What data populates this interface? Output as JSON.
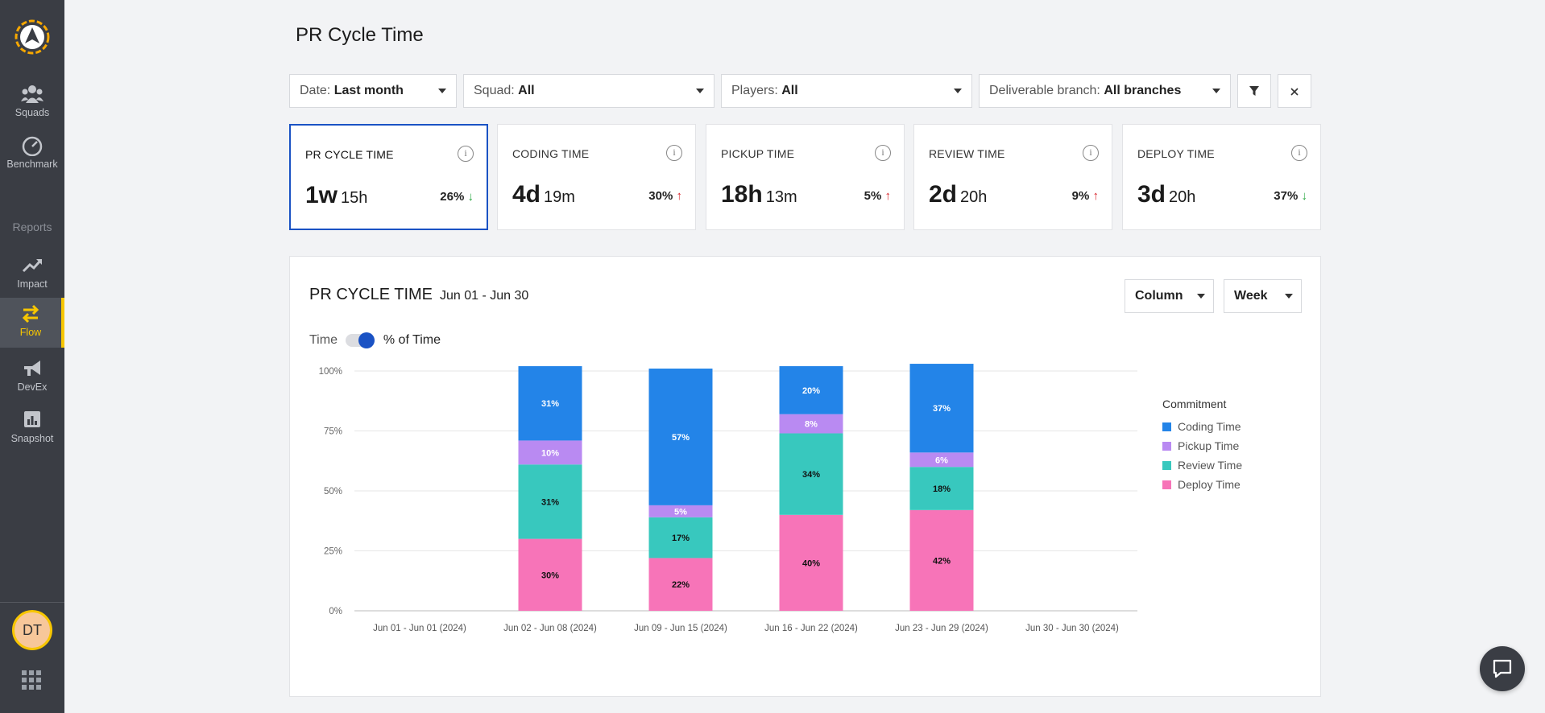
{
  "sidebar": {
    "items": [
      {
        "label": "Squads",
        "icon": "people-icon"
      },
      {
        "label": "Benchmark",
        "icon": "gauge-icon"
      },
      {
        "label": "Impact",
        "icon": "trend-up-icon"
      },
      {
        "label": "Flow",
        "icon": "swap-arrows-icon"
      },
      {
        "label": "DevEx",
        "icon": "megaphone-icon"
      },
      {
        "label": "Snapshot",
        "icon": "bar-chart-icon"
      }
    ],
    "section_label": "Reports",
    "avatar_initials": "DT"
  },
  "page": {
    "title": "PR Cycle Time"
  },
  "filters": {
    "date": {
      "label": "Date:",
      "value": "Last month"
    },
    "squad": {
      "label": "Squad:",
      "value": "All"
    },
    "players": {
      "label": "Players:",
      "value": "All"
    },
    "branch": {
      "label": "Deliverable branch:",
      "value": "All branches"
    }
  },
  "cards": [
    {
      "label": "PR CYCLE TIME",
      "big": "1w",
      "small": "15h",
      "pct": "26%",
      "trend": "down"
    },
    {
      "label": "CODING TIME",
      "big": "4d",
      "small": "19m",
      "pct": "30%",
      "trend": "up"
    },
    {
      "label": "PICKUP TIME",
      "big": "18h",
      "small": "13m",
      "pct": "5%",
      "trend": "up"
    },
    {
      "label": "REVIEW TIME",
      "big": "2d",
      "small": "20h",
      "pct": "9%",
      "trend": "up"
    },
    {
      "label": "DEPLOY TIME",
      "big": "3d",
      "small": "20h",
      "pct": "37%",
      "trend": "down"
    }
  ],
  "chart_panel": {
    "title": "PR CYCLE TIME",
    "range": "Jun 01 - Jun 30",
    "view_select": "Column",
    "period_select": "Week",
    "toggle_left": "Time",
    "toggle_right": "% of Time"
  },
  "chart_data": {
    "type": "bar",
    "stacked": true,
    "legend_title": "Commitment",
    "categories": [
      "Jun 01 - Jun 01 (2024)",
      "Jun 02 - Jun 08 (2024)",
      "Jun 09 - Jun 15 (2024)",
      "Jun 16 - Jun 22 (2024)",
      "Jun 23 - Jun 29 (2024)",
      "Jun 30 - Jun 30 (2024)"
    ],
    "series": [
      {
        "name": "Deploy Time",
        "color": "#f774b8",
        "values": [
          null,
          30,
          22,
          40,
          42,
          null
        ]
      },
      {
        "name": "Review Time",
        "color": "#38c8be",
        "values": [
          null,
          31,
          17,
          34,
          18,
          null
        ]
      },
      {
        "name": "Pickup Time",
        "color": "#b98af2",
        "values": [
          null,
          10,
          5,
          8,
          6,
          null
        ]
      },
      {
        "name": "Coding Time",
        "color": "#2384e8",
        "values": [
          null,
          31,
          57,
          20,
          37,
          null
        ]
      }
    ],
    "ylim": [
      0,
      100
    ],
    "yticks": [
      "0%",
      "25%",
      "50%",
      "75%",
      "100%"
    ],
    "legend_order": [
      "Coding Time",
      "Pickup Time",
      "Review Time",
      "Deploy Time"
    ],
    "grid": true,
    "legend_position": "right"
  }
}
